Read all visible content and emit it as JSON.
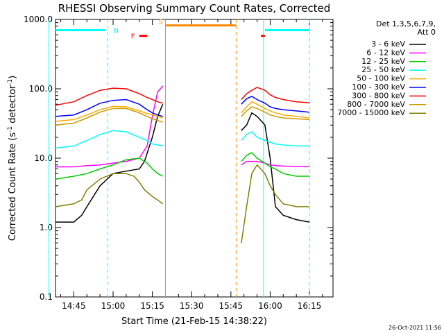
{
  "chart_data": {
    "type": "line",
    "title": "RHESSI Observing Summary Count Rates, Corrected",
    "xlabel": "Start Time (21-Feb-15 14:38:22)",
    "ylabel_main": "Corrected Count Rate (s",
    "ylabel_sup1": "-1",
    "ylabel_mid": " detector",
    "ylabel_sup2": "-1",
    "ylabel_end": ")",
    "yscale": "log",
    "ylim": [
      0.1,
      1000
    ],
    "xlim_min": [
      878,
      984
    ],
    "x_unit": "minutes after 00:00 UT",
    "yticks": [
      {
        "v": 0.1,
        "label": "0.1"
      },
      {
        "v": 1,
        "label": "1.0"
      },
      {
        "v": 10,
        "label": "10.0"
      },
      {
        "v": 100,
        "label": "100.0"
      },
      {
        "v": 1000,
        "label": "1000.0"
      }
    ],
    "xticks": [
      {
        "t": 885,
        "label": "14:45"
      },
      {
        "t": 900,
        "label": "15:00"
      },
      {
        "t": 915,
        "label": "15:15"
      },
      {
        "t": 930,
        "label": "15:30"
      },
      {
        "t": 945,
        "label": "15:45"
      },
      {
        "t": 960,
        "label": "16:00"
      },
      {
        "t": 975,
        "label": "16:15"
      }
    ],
    "legend": {
      "position": "right",
      "header1": "Det 1,3,5,6,7,9,",
      "header2": "Att 0"
    },
    "series": [
      {
        "name": "3 - 6 keV",
        "color": "#000000",
        "x": [
          878,
          885,
          888,
          890,
          895,
          900,
          905,
          910,
          912,
          915,
          917,
          919,
          949,
          951,
          953,
          955,
          958,
          960,
          962,
          965,
          970,
          975
        ],
        "y": [
          1.2,
          1.2,
          1.5,
          2.0,
          4.0,
          6.0,
          6.5,
          7.0,
          9.0,
          20,
          40,
          60,
          25,
          30,
          45,
          40,
          30,
          10,
          2.0,
          1.5,
          1.3,
          1.2
        ]
      },
      {
        "name": "6 - 12 keV",
        "color": "#ff00ff",
        "x": [
          878,
          885,
          890,
          895,
          900,
          905,
          910,
          913,
          915,
          917,
          919,
          949,
          951,
          953,
          955,
          958,
          960,
          962,
          965,
          970,
          975
        ],
        "y": [
          7.5,
          7.5,
          7.8,
          8.0,
          8.5,
          9.0,
          10,
          15,
          40,
          90,
          110,
          8,
          9,
          9,
          9,
          8.5,
          8,
          7.8,
          7.7,
          7.6,
          7.6
        ]
      },
      {
        "name": "12 - 25 keV",
        "color": "#00cc00",
        "x": [
          878,
          885,
          890,
          895,
          900,
          905,
          910,
          913,
          915,
          917,
          919,
          949,
          951,
          953,
          955,
          958,
          960,
          962,
          965,
          970,
          975
        ],
        "y": [
          5.0,
          5.5,
          6.0,
          7.0,
          8.0,
          9.5,
          10,
          8.5,
          7.0,
          6.0,
          5.5,
          9,
          11,
          12,
          10,
          8.5,
          7.5,
          7.0,
          6.0,
          5.5,
          5.5
        ]
      },
      {
        "name": "25 - 50 keV",
        "color": "#00ffff",
        "x": [
          878,
          885,
          890,
          895,
          900,
          905,
          910,
          913,
          915,
          917,
          919,
          949,
          951,
          953,
          955,
          958,
          960,
          962,
          965,
          970,
          975
        ],
        "y": [
          14,
          15,
          18,
          22,
          25,
          24,
          20,
          18,
          16,
          15.5,
          15,
          18,
          22,
          24,
          20,
          18,
          17,
          16,
          15.5,
          15,
          15
        ]
      },
      {
        "name": "50 - 100 keV",
        "color": "#ffaa00",
        "x": [
          878,
          885,
          890,
          895,
          900,
          905,
          910,
          913,
          915,
          917,
          919,
          949,
          951,
          953,
          955,
          958,
          960,
          962,
          965,
          970,
          975
        ],
        "y": [
          34,
          36,
          42,
          50,
          56,
          55,
          48,
          44,
          42,
          40,
          38,
          45,
          55,
          65,
          60,
          52,
          48,
          45,
          42,
          40,
          38
        ]
      },
      {
        "name": "100 - 300 keV",
        "color": "#0000ff",
        "x": [
          878,
          885,
          890,
          895,
          900,
          905,
          910,
          913,
          915,
          917,
          919,
          949,
          951,
          953,
          955,
          958,
          960,
          962,
          965,
          970,
          975
        ],
        "y": [
          40,
          42,
          50,
          62,
          68,
          70,
          60,
          50,
          45,
          42,
          40,
          60,
          72,
          78,
          70,
          62,
          55,
          52,
          50,
          48,
          46
        ]
      },
      {
        "name": "300 - 800 keV",
        "color": "#ff0000",
        "x": [
          878,
          885,
          890,
          895,
          900,
          905,
          910,
          913,
          915,
          917,
          919,
          949,
          951,
          953,
          955,
          958,
          960,
          962,
          965,
          970,
          975
        ],
        "y": [
          58,
          65,
          80,
          95,
          102,
          100,
          85,
          75,
          70,
          65,
          62,
          70,
          85,
          95,
          105,
          95,
          82,
          75,
          70,
          65,
          63
        ]
      },
      {
        "name": "800 - 7000 keV",
        "color": "#cc9900",
        "x": [
          878,
          885,
          890,
          895,
          900,
          905,
          910,
          913,
          915,
          917,
          919,
          949,
          951,
          953,
          955,
          958,
          960,
          962,
          965,
          970,
          975
        ],
        "y": [
          30,
          32,
          38,
          46,
          52,
          52,
          45,
          40,
          37,
          35,
          33,
          40,
          48,
          55,
          52,
          46,
          42,
          40,
          38,
          37,
          36
        ]
      },
      {
        "name": "7000 - 15000 keV",
        "color": "#808000",
        "x": [
          878,
          885,
          888,
          890,
          895,
          900,
          905,
          908,
          910,
          912,
          915,
          917,
          919,
          949,
          951,
          953,
          955,
          958,
          960,
          962,
          965,
          970,
          975
        ],
        "y": [
          2.0,
          2.2,
          2.5,
          3.5,
          5.0,
          6.0,
          6.0,
          5.5,
          4.5,
          3.5,
          2.8,
          2.5,
          2.2,
          0.6,
          2.0,
          6.0,
          8.0,
          6.0,
          4.0,
          3.0,
          2.2,
          2.0,
          2.0
        ]
      }
    ],
    "annotations": [
      {
        "label": "N",
        "color": "#00ffff",
        "line_t": 875.5,
        "line_t2": 975,
        "start_t": 878,
        "end_t": 898,
        "end_t2": 957.5
      },
      {
        "label": "S",
        "color": "#ff8800",
        "start_t": 920,
        "end_t": 947
      },
      {
        "label": "F",
        "color": "#ff0000",
        "start_t": 910,
        "end_t": 913,
        "start_t2": 956.5,
        "end_t2": 958
      }
    ],
    "timestamp": "26-Oct-2021 11:56"
  }
}
